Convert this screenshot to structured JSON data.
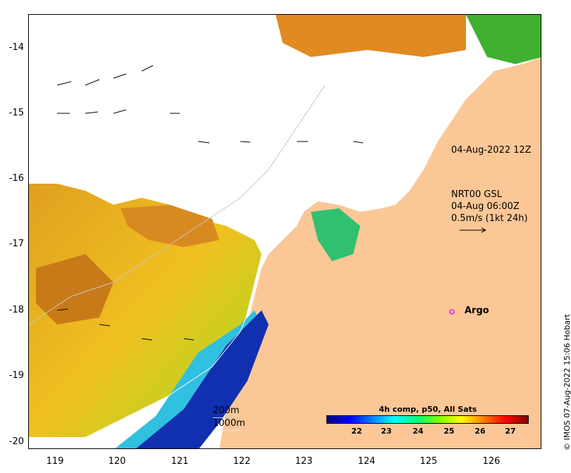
{
  "map": {
    "y_ticks": [
      "-14",
      "-15",
      "-16",
      "-17",
      "-18",
      "-19",
      "-20"
    ],
    "x_ticks": [
      "119",
      "120",
      "121",
      "122",
      "123",
      "124",
      "125",
      "126"
    ],
    "annotations": {
      "timestamp": "04-Aug-2022 12Z",
      "current_source": "NRT00 GSL",
      "current_time": "04-Aug 06:00Z",
      "current_scale": "0.5m/s (1kt 24h)",
      "argo_label": "Argo"
    },
    "isobaths": {
      "shallow": "200m",
      "deep": "1000m"
    },
    "colorbar": {
      "title": "4h comp, p50, All Sats",
      "ticks": [
        "22",
        "23",
        "24",
        "25",
        "26",
        "27"
      ],
      "colors": [
        "#00007f",
        "#0000ff",
        "#0080ff",
        "#00ffff",
        "#00ff80",
        "#80ff00",
        "#ffff00",
        "#ff8000",
        "#ff0000",
        "#800000"
      ]
    },
    "credit": "© IMOS 07-Aug-2022 15:06 Hobart",
    "colors": {
      "land": "#fbc797",
      "cloud": "#ffffff",
      "argo_marker": "#ff00ff"
    }
  }
}
